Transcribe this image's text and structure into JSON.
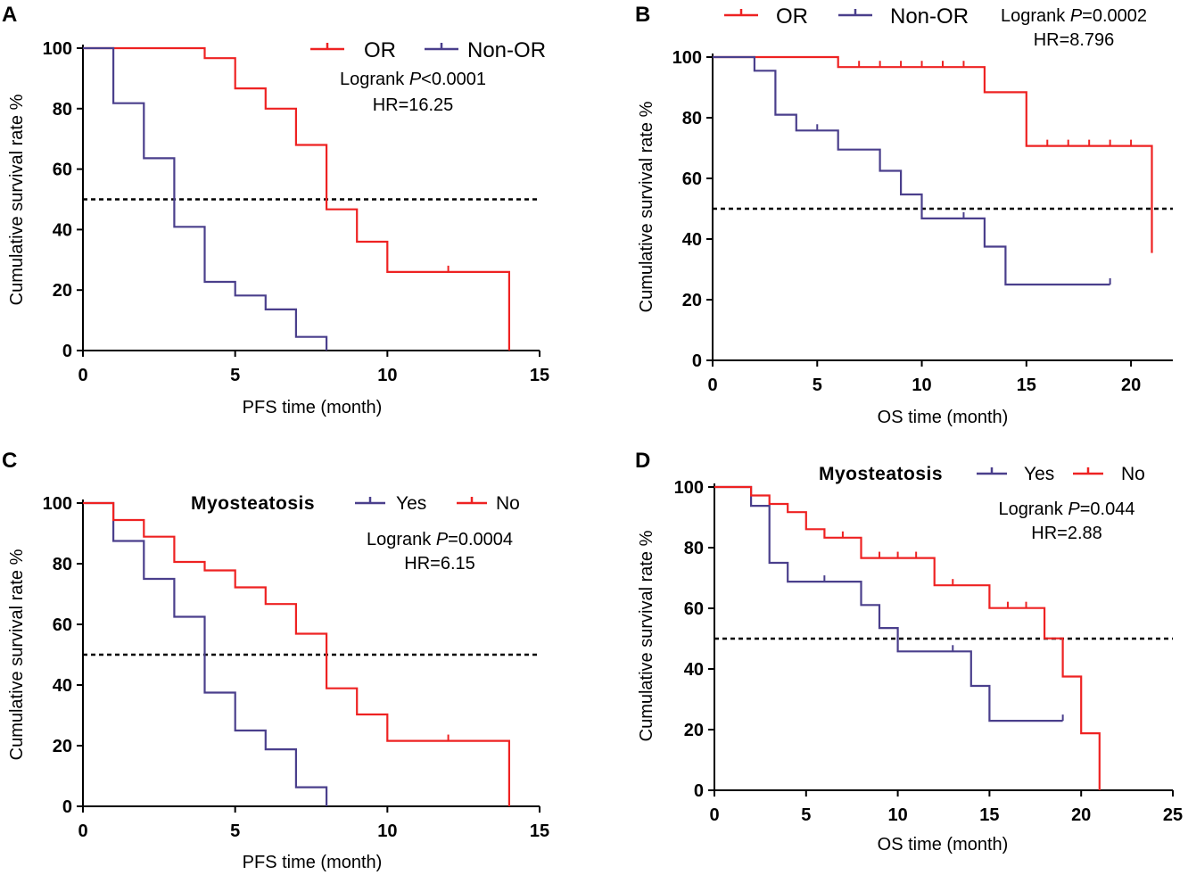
{
  "colors": {
    "red": "#ee2222",
    "purple": "#4a3f8c",
    "axis": "#000000"
  },
  "chart_data": [
    {
      "panel": "A",
      "type": "line",
      "subtype": "kaplan-meier",
      "xlabel": "PFS time (month)",
      "ylabel": "Cumulative survival rate %",
      "xlim": [
        0,
        15
      ],
      "ylim": [
        0,
        100
      ],
      "xticks": [
        "0",
        "5",
        "10",
        "15"
      ],
      "yticks": [
        "0",
        "20",
        "40",
        "60",
        "80",
        "100"
      ],
      "reference_line": 50,
      "legend_title": "",
      "stats": {
        "logrank_prefix": "Logrank ",
        "logrank_p": "P",
        "logrank_value": "<0.0001",
        "hr": "HR=16.25"
      },
      "series": [
        {
          "name": "OR",
          "color": "#ee2222",
          "steps": [
            [
              0,
              100
            ],
            [
              4,
              96.7
            ],
            [
              5,
              86.7
            ],
            [
              6,
              80
            ],
            [
              7,
              68
            ],
            [
              8,
              46.7
            ],
            [
              9,
              36
            ],
            [
              10,
              26
            ],
            [
              14,
              0
            ]
          ],
          "end_x": 14,
          "censors": [
            [
              12,
              26
            ]
          ]
        },
        {
          "name": "Non-OR",
          "color": "#4a3f8c",
          "steps": [
            [
              0,
              100
            ],
            [
              1,
              81.8
            ],
            [
              2,
              63.6
            ],
            [
              3,
              40.9
            ],
            [
              4,
              22.7
            ],
            [
              5,
              18.2
            ],
            [
              6,
              13.6
            ],
            [
              7,
              4.5
            ],
            [
              8,
              0
            ]
          ],
          "end_x": 8,
          "censors": []
        }
      ]
    },
    {
      "panel": "B",
      "type": "line",
      "subtype": "kaplan-meier",
      "xlabel": "OS time (month)",
      "ylabel": "Cumulative survival rate %",
      "xlim": [
        0,
        22
      ],
      "ylim": [
        0,
        100
      ],
      "xticks": [
        "0",
        "5",
        "10",
        "15",
        "20"
      ],
      "yticks": [
        "0",
        "20",
        "40",
        "60",
        "80",
        "100"
      ],
      "reference_line": 50,
      "legend_title": "",
      "stats": {
        "logrank_prefix": "Logrank ",
        "logrank_p": "P",
        "logrank_value": "=0.0002",
        "hr": "HR=8.796"
      },
      "series": [
        {
          "name": "OR",
          "color": "#ee2222",
          "steps": [
            [
              0,
              100
            ],
            [
              6,
              96.7
            ],
            [
              13,
              88.4
            ],
            [
              15,
              70.7
            ],
            [
              21,
              35.4
            ]
          ],
          "end_x": 21,
          "censors": [
            [
              7,
              96.7
            ],
            [
              8,
              96.7
            ],
            [
              9,
              96.7
            ],
            [
              10,
              96.7
            ],
            [
              11,
              96.7
            ],
            [
              12,
              96.7
            ],
            [
              16,
              70.7
            ],
            [
              17,
              70.7
            ],
            [
              18,
              70.7
            ],
            [
              19,
              70.7
            ],
            [
              20,
              70.7
            ]
          ]
        },
        {
          "name": "Non-OR",
          "color": "#4a3f8c",
          "steps": [
            [
              0,
              100
            ],
            [
              2,
              95.5
            ],
            [
              3,
              81
            ],
            [
              4,
              75.8
            ],
            [
              6,
              69.5
            ],
            [
              8,
              62.5
            ],
            [
              9,
              54.7
            ],
            [
              10,
              46.8
            ],
            [
              13,
              37.5
            ],
            [
              14,
              25
            ]
          ],
          "end_x": 19,
          "censors": [
            [
              5,
              75.8
            ],
            [
              12,
              46.8
            ],
            [
              19,
              25
            ]
          ]
        }
      ]
    },
    {
      "panel": "C",
      "type": "line",
      "subtype": "kaplan-meier",
      "xlabel": "PFS time (month)",
      "ylabel": "Cumulative survival rate %",
      "xlim": [
        0,
        15
      ],
      "ylim": [
        0,
        100
      ],
      "xticks": [
        "0",
        "5",
        "10",
        "15"
      ],
      "yticks": [
        "0",
        "20",
        "40",
        "60",
        "80",
        "100"
      ],
      "reference_line": 50,
      "legend_title": "Myosteatosis",
      "stats": {
        "logrank_prefix": "Logrank ",
        "logrank_p": "P",
        "logrank_value": "=0.0004",
        "hr": "HR=6.15"
      },
      "series": [
        {
          "name": "Yes",
          "color": "#4a3f8c",
          "steps": [
            [
              0,
              100
            ],
            [
              1,
              87.5
            ],
            [
              2,
              75
            ],
            [
              3,
              62.5
            ],
            [
              4,
              37.5
            ],
            [
              5,
              25
            ],
            [
              6,
              18.8
            ],
            [
              7,
              6.3
            ],
            [
              8,
              0
            ]
          ],
          "end_x": 8,
          "censors": []
        },
        {
          "name": "No",
          "color": "#ee2222",
          "steps": [
            [
              0,
              100
            ],
            [
              1,
              94.4
            ],
            [
              2,
              88.9
            ],
            [
              3,
              80.6
            ],
            [
              4,
              77.8
            ],
            [
              5,
              72.2
            ],
            [
              6,
              66.7
            ],
            [
              7,
              56.9
            ],
            [
              8,
              38.9
            ],
            [
              9,
              30.3
            ],
            [
              10,
              21.6
            ],
            [
              14,
              0
            ]
          ],
          "end_x": 14,
          "censors": [
            [
              12,
              21.6
            ]
          ]
        }
      ]
    },
    {
      "panel": "D",
      "type": "line",
      "subtype": "kaplan-meier",
      "xlabel": "OS time (month)",
      "ylabel": "Cumulative survival rate %",
      "xlim": [
        0,
        25
      ],
      "ylim": [
        0,
        100
      ],
      "xticks": [
        "0",
        "5",
        "10",
        "15",
        "20",
        "25"
      ],
      "yticks": [
        "0",
        "20",
        "40",
        "60",
        "80",
        "100"
      ],
      "reference_line": 50,
      "legend_title": "Myosteatosis",
      "stats": {
        "logrank_prefix": "Logrank ",
        "logrank_p": "P",
        "logrank_value": "=0.044",
        "hr": "HR=2.88"
      },
      "series": [
        {
          "name": "Yes",
          "color": "#4a3f8c",
          "steps": [
            [
              0,
              100
            ],
            [
              2,
              93.8
            ],
            [
              3,
              75
            ],
            [
              4,
              68.8
            ],
            [
              8,
              61.1
            ],
            [
              9,
              53.5
            ],
            [
              10,
              45.8
            ],
            [
              14,
              34.4
            ],
            [
              15,
              22.9
            ]
          ],
          "end_x": 19,
          "censors": [
            [
              6,
              68.8
            ],
            [
              13,
              45.8
            ],
            [
              19,
              22.9
            ]
          ]
        },
        {
          "name": "No",
          "color": "#ee2222",
          "steps": [
            [
              0,
              100
            ],
            [
              2,
              97.2
            ],
            [
              3,
              94.4
            ],
            [
              4,
              91.7
            ],
            [
              5,
              86.1
            ],
            [
              6,
              83.3
            ],
            [
              8,
              76.6
            ],
            [
              12,
              67.6
            ],
            [
              15,
              60.1
            ],
            [
              18,
              50.1
            ],
            [
              19,
              37.5
            ],
            [
              20,
              18.8
            ],
            [
              21,
              0
            ]
          ],
          "end_x": 21,
          "censors": [
            [
              7,
              83.3
            ],
            [
              9,
              76.6
            ],
            [
              10,
              76.6
            ],
            [
              11,
              76.6
            ],
            [
              13,
              67.6
            ],
            [
              16,
              60.1
            ],
            [
              17,
              60.1
            ]
          ]
        }
      ]
    }
  ]
}
